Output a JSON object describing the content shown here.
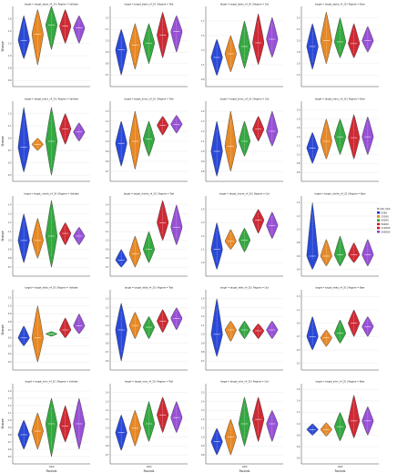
{
  "legend": {
    "title": "Model_Size",
    "entries": [
      {
        "label": "2560",
        "color": "#1f3fd6"
      },
      {
        "label": "15360",
        "color": "#e6831a"
      },
      {
        "label": "30000",
        "color": "#2aa437"
      },
      {
        "label": "50000",
        "color": "#cc1f2a"
      },
      {
        "label": "110000",
        "color": "#cc1f2a"
      },
      {
        "label": "200000",
        "color": "#9147d4"
      }
    ]
  },
  "chart_data": [
    {
      "type": "violin",
      "title": "target = target_alpha_v4_20 | Regime = Validate",
      "ylabel": "Sharpe",
      "xlabel": "",
      "ylim": [
        0.5,
        1.8
      ],
      "yticks": [
        0.6,
        0.8,
        1.0,
        1.2,
        1.4,
        1.6
      ],
      "x": [
        "1000"
      ],
      "series": [
        {
          "name": "2560",
          "median": 1.25,
          "min": 0.95,
          "max": 1.65
        },
        {
          "name": "15360",
          "median": 1.35,
          "min": 0.85,
          "max": 1.75
        },
        {
          "name": "30000",
          "median": 1.5,
          "min": 1.1,
          "max": 1.8
        },
        {
          "name": "50000",
          "median": 1.48,
          "min": 1.2,
          "max": 1.75
        },
        {
          "name": "110000",
          "median": 1.45,
          "min": 1.2,
          "max": 1.65
        }
      ]
    },
    {
      "type": "violin",
      "title": "target = target_alpha_v4_20 | Regime = Test",
      "ylabel": "",
      "xlabel": "",
      "ylim": [
        0.6,
        1.3
      ],
      "yticks": [
        0.7,
        0.8,
        0.9,
        1.0,
        1.1,
        1.2
      ],
      "x": [
        "1000"
      ],
      "series": [
        {
          "name": "2560",
          "median": 0.92,
          "min": 0.7,
          "max": 1.1
        },
        {
          "name": "15360",
          "median": 0.96,
          "min": 0.75,
          "max": 1.15
        },
        {
          "name": "30000",
          "median": 0.98,
          "min": 0.8,
          "max": 1.15
        },
        {
          "name": "50000",
          "median": 1.05,
          "min": 0.85,
          "max": 1.25
        },
        {
          "name": "110000",
          "median": 1.08,
          "min": 0.9,
          "max": 1.22
        }
      ]
    },
    {
      "type": "violin",
      "title": "target = target_alpha_v4_20 | Regime = Out",
      "ylabel": "",
      "xlabel": "",
      "ylim": [
        0.8,
        1.9
      ],
      "yticks": [
        0.9,
        1.1,
        1.3,
        1.5,
        1.7
      ],
      "x": [
        "1000"
      ],
      "series": [
        {
          "name": "2560",
          "median": 1.2,
          "min": 0.95,
          "max": 1.45
        },
        {
          "name": "15360",
          "median": 1.25,
          "min": 1.0,
          "max": 1.5
        },
        {
          "name": "30000",
          "median": 1.35,
          "min": 1.05,
          "max": 1.7
        },
        {
          "name": "50000",
          "median": 1.4,
          "min": 1.1,
          "max": 1.8
        },
        {
          "name": "110000",
          "median": 1.45,
          "min": 1.2,
          "max": 1.75
        }
      ]
    },
    {
      "type": "violin",
      "title": "target = target_alpha_v4_20 | Regime = Bear",
      "ylabel": "",
      "xlabel": "",
      "ylim": [
        1.2,
        2.6
      ],
      "yticks": [
        1.4,
        1.6,
        1.8,
        2.0,
        2.2,
        2.4
      ],
      "x": [
        "1000"
      ],
      "series": [
        {
          "name": "2560",
          "median": 1.9,
          "min": 1.5,
          "max": 2.3
        },
        {
          "name": "15360",
          "median": 2.0,
          "min": 1.6,
          "max": 2.5
        },
        {
          "name": "30000",
          "median": 1.98,
          "min": 1.7,
          "max": 2.4
        },
        {
          "name": "50000",
          "median": 1.95,
          "min": 1.7,
          "max": 2.3
        },
        {
          "name": "110000",
          "median": 2.0,
          "min": 1.8,
          "max": 2.25
        }
      ]
    },
    {
      "type": "violin",
      "title": "target = target_bravo_v4_20 | Regime = Validate",
      "ylabel": "Sharpe",
      "xlabel": "",
      "ylim": [
        0.2,
        1.5
      ],
      "yticks": [
        0.3,
        0.5,
        0.7,
        0.9,
        1.1,
        1.3
      ],
      "x": [
        "1000"
      ],
      "series": [
        {
          "name": "2560",
          "median": 0.75,
          "min": 0.35,
          "max": 1.4
        },
        {
          "name": "15360",
          "median": 0.8,
          "min": 0.7,
          "max": 0.9
        },
        {
          "name": "30000",
          "median": 0.85,
          "min": 0.3,
          "max": 1.4
        },
        {
          "name": "50000",
          "median": 1.05,
          "min": 0.8,
          "max": 1.3
        },
        {
          "name": "110000",
          "median": 1.0,
          "min": 0.85,
          "max": 1.15
        }
      ]
    },
    {
      "type": "violin",
      "title": "target = target_bravo_v4_20 | Regime = Test",
      "ylabel": "",
      "xlabel": "",
      "ylim": [
        0.6,
        1.4
      ],
      "yticks": [
        0.7,
        0.8,
        0.9,
        1.0,
        1.1,
        1.2,
        1.3
      ],
      "x": [
        "1000"
      ],
      "series": [
        {
          "name": "2560",
          "median": 0.98,
          "min": 0.75,
          "max": 1.2
        },
        {
          "name": "15360",
          "median": 1.0,
          "min": 0.72,
          "max": 1.3
        },
        {
          "name": "30000",
          "median": 1.02,
          "min": 0.85,
          "max": 1.2
        },
        {
          "name": "50000",
          "median": 1.16,
          "min": 1.06,
          "max": 1.25
        },
        {
          "name": "110000",
          "median": 1.17,
          "min": 1.08,
          "max": 1.26
        }
      ]
    },
    {
      "type": "violin",
      "title": "target = target_bravo_v4_20 | Regime = Out",
      "ylabel": "",
      "xlabel": "",
      "ylim": [
        0.7,
        1.5
      ],
      "yticks": [
        0.8,
        0.9,
        1.0,
        1.1,
        1.2,
        1.3,
        1.4
      ],
      "x": [
        "1000"
      ],
      "series": [
        {
          "name": "2560",
          "median": 1.0,
          "min": 0.75,
          "max": 1.3
        },
        {
          "name": "15360",
          "median": 1.05,
          "min": 0.8,
          "max": 1.4
        },
        {
          "name": "30000",
          "median": 1.1,
          "min": 0.95,
          "max": 1.3
        },
        {
          "name": "50000",
          "median": 1.22,
          "min": 1.1,
          "max": 1.35
        },
        {
          "name": "110000",
          "median": 1.2,
          "min": 1.05,
          "max": 1.4
        }
      ]
    },
    {
      "type": "violin",
      "title": "target = target_bravo_v4_20 | Regime = Bear",
      "ylabel": "",
      "xlabel": "",
      "ylim": [
        0.4,
        2.2
      ],
      "yticks": [
        0.6,
        0.8,
        1.0,
        1.2,
        1.4,
        1.6,
        1.8,
        2.0
      ],
      "x": [
        "1000"
      ],
      "series": [
        {
          "name": "2560",
          "median": 1.15,
          "min": 0.8,
          "max": 1.5
        },
        {
          "name": "15360",
          "median": 1.3,
          "min": 0.9,
          "max": 1.8
        },
        {
          "name": "30000",
          "median": 1.4,
          "min": 1.0,
          "max": 1.8
        },
        {
          "name": "50000",
          "median": 1.38,
          "min": 0.9,
          "max": 1.9
        },
        {
          "name": "110000",
          "median": 1.4,
          "min": 1.0,
          "max": 1.85
        }
      ]
    },
    {
      "type": "violin",
      "title": "target = target_charlie_v4_20 | Regime = Validate",
      "ylabel": "Sharpe",
      "xlabel": "",
      "ylim": [
        0.6,
        1.5
      ],
      "yticks": [
        0.7,
        0.8,
        0.9,
        1.0,
        1.1,
        1.2,
        1.3,
        1.4
      ],
      "x": [
        "1000"
      ],
      "series": [
        {
          "name": "2560",
          "median": 1.0,
          "min": 0.75,
          "max": 1.3
        },
        {
          "name": "15360",
          "median": 1.0,
          "min": 0.8,
          "max": 1.25
        },
        {
          "name": "30000",
          "median": 1.05,
          "min": 0.7,
          "max": 1.45
        },
        {
          "name": "50000",
          "median": 1.08,
          "min": 0.95,
          "max": 1.2
        },
        {
          "name": "110000",
          "median": 1.05,
          "min": 0.95,
          "max": 1.15
        }
      ]
    },
    {
      "type": "violin",
      "title": "target = target_charlie_v4_20 | Regime = Test",
      "ylabel": "",
      "xlabel": "",
      "ylim": [
        0.6,
        1.5
      ],
      "yticks": [
        0.7,
        0.8,
        0.9,
        1.0,
        1.1,
        1.2,
        1.3,
        1.4
      ],
      "x": [
        "1000"
      ],
      "series": [
        {
          "name": "2560",
          "median": 0.78,
          "min": 0.7,
          "max": 0.9
        },
        {
          "name": "15360",
          "median": 0.85,
          "min": 0.7,
          "max": 1.05
        },
        {
          "name": "30000",
          "median": 0.9,
          "min": 0.75,
          "max": 1.1
        },
        {
          "name": "50000",
          "median": 1.2,
          "min": 1.0,
          "max": 1.45
        },
        {
          "name": "110000",
          "median": 1.15,
          "min": 0.95,
          "max": 1.4
        }
      ]
    },
    {
      "type": "violin",
      "title": "target = target_charlie_v4_20 | Regime = Out",
      "ylabel": "",
      "xlabel": "",
      "ylim": [
        0.9,
        1.5
      ],
      "yticks": [
        1.0,
        1.1,
        1.2,
        1.3,
        1.4
      ],
      "x": [
        "1000"
      ],
      "series": [
        {
          "name": "2560",
          "median": 1.1,
          "min": 0.95,
          "max": 1.3
        },
        {
          "name": "15360",
          "median": 1.16,
          "min": 1.1,
          "max": 1.25
        },
        {
          "name": "30000",
          "median": 1.17,
          "min": 1.08,
          "max": 1.26
        },
        {
          "name": "50000",
          "median": 1.32,
          "min": 1.22,
          "max": 1.4
        },
        {
          "name": "110000",
          "median": 1.28,
          "min": 1.18,
          "max": 1.38
        }
      ]
    },
    {
      "type": "violin",
      "title": "target = target_charlie_v4_20 | Regime = Bear",
      "ylabel": "",
      "xlabel": "",
      "ylim": [
        0.3,
        1.5
      ],
      "yticks": [
        0.4,
        0.6,
        0.8,
        1.0,
        1.2,
        1.4
      ],
      "x": [
        "1000"
      ],
      "series": [
        {
          "name": "2560",
          "median": 0.6,
          "min": 0.4,
          "max": 1.4
        },
        {
          "name": "15360",
          "median": 0.6,
          "min": 0.45,
          "max": 0.85
        },
        {
          "name": "30000",
          "median": 0.62,
          "min": 0.45,
          "max": 0.9
        },
        {
          "name": "50000",
          "median": 0.62,
          "min": 0.5,
          "max": 0.8
        },
        {
          "name": "110000",
          "median": 0.62,
          "min": 0.45,
          "max": 0.85
        }
      ]
    },
    {
      "type": "violin",
      "title": "target = target_delta_v4_20 | Regime = Validate",
      "ylabel": "Sharpe",
      "xlabel": "",
      "ylim": [
        0.2,
        1.2
      ],
      "yticks": [
        0.3,
        0.4,
        0.5,
        0.6,
        0.7,
        0.8,
        0.9,
        1.0,
        1.1
      ],
      "x": [
        "1000"
      ],
      "series": [
        {
          "name": "2560",
          "median": 0.6,
          "min": 0.5,
          "max": 0.75
        },
        {
          "name": "15360",
          "median": 0.6,
          "min": 0.3,
          "max": 1.0
        },
        {
          "name": "30000",
          "median": 0.65,
          "min": 0.62,
          "max": 0.68
        },
        {
          "name": "50000",
          "median": 0.7,
          "min": 0.6,
          "max": 0.85
        },
        {
          "name": "110000",
          "median": 0.75,
          "min": 0.65,
          "max": 0.9
        }
      ]
    },
    {
      "type": "violin",
      "title": "target = target_delta_v4_20 | Regime = Test",
      "ylabel": "",
      "xlabel": "",
      "ylim": [
        0.5,
        1.4
      ],
      "yticks": [
        0.6,
        0.7,
        0.8,
        0.9,
        1.0,
        1.1,
        1.2,
        1.3
      ],
      "x": [
        "1000"
      ],
      "series": [
        {
          "name": "2560",
          "median": 0.95,
          "min": 0.6,
          "max": 1.25
        },
        {
          "name": "15360",
          "median": 1.0,
          "min": 0.85,
          "max": 1.15
        },
        {
          "name": "30000",
          "median": 0.98,
          "min": 0.85,
          "max": 1.1
        },
        {
          "name": "50000",
          "median": 1.05,
          "min": 0.92,
          "max": 1.18
        },
        {
          "name": "110000",
          "median": 1.08,
          "min": 0.95,
          "max": 1.2
        }
      ]
    },
    {
      "type": "violin",
      "title": "target = target_delta_v4_20 | Regime = Out",
      "ylabel": "",
      "xlabel": "",
      "ylim": [
        0.6,
        1.5
      ],
      "yticks": [
        0.7,
        0.8,
        0.9,
        1.0,
        1.1,
        1.2,
        1.3,
        1.4
      ],
      "x": [
        "1000"
      ],
      "series": [
        {
          "name": "2560",
          "median": 1.0,
          "min": 0.75,
          "max": 1.4
        },
        {
          "name": "15360",
          "median": 1.05,
          "min": 0.92,
          "max": 1.15
        },
        {
          "name": "30000",
          "median": 1.05,
          "min": 0.95,
          "max": 1.15
        },
        {
          "name": "50000",
          "median": 1.04,
          "min": 0.95,
          "max": 1.12
        },
        {
          "name": "110000",
          "median": 1.05,
          "min": 0.95,
          "max": 1.15
        }
      ]
    },
    {
      "type": "violin",
      "title": "target = target_delta_v4_20 | Regime = Bear",
      "ylabel": "",
      "xlabel": "",
      "ylim": [
        0.2,
        1.4
      ],
      "yticks": [
        0.3,
        0.5,
        0.7,
        0.9,
        1.1,
        1.3
      ],
      "x": [
        "1000"
      ],
      "series": [
        {
          "name": "2560",
          "median": 0.7,
          "min": 0.5,
          "max": 1.0
        },
        {
          "name": "15360",
          "median": 0.68,
          "min": 0.55,
          "max": 0.8
        },
        {
          "name": "30000",
          "median": 0.75,
          "min": 0.6,
          "max": 0.95
        },
        {
          "name": "50000",
          "median": 0.9,
          "min": 0.7,
          "max": 1.1
        },
        {
          "name": "110000",
          "median": 0.85,
          "min": 0.7,
          "max": 1.0
        }
      ]
    },
    {
      "type": "violin",
      "title": "target = target_echo_v4_20 | Regime = Validate",
      "ylabel": "Sharpe",
      "xlabel": "Rounds",
      "ylim": [
        0.4,
        1.5
      ],
      "yticks": [
        0.5,
        0.6,
        0.7,
        0.8,
        0.9,
        1.0,
        1.1,
        1.2,
        1.3,
        1.4
      ],
      "x": [
        "1000"
      ],
      "series": [
        {
          "name": "2560",
          "median": 0.8,
          "min": 0.6,
          "max": 1.0
        },
        {
          "name": "15360",
          "median": 0.85,
          "min": 0.6,
          "max": 1.1
        },
        {
          "name": "30000",
          "median": 0.95,
          "min": 0.5,
          "max": 1.3
        },
        {
          "name": "50000",
          "median": 0.92,
          "min": 0.7,
          "max": 1.2
        },
        {
          "name": "110000",
          "median": 0.95,
          "min": 0.6,
          "max": 1.3
        }
      ]
    },
    {
      "type": "violin",
      "title": "target = target_echo_v4_20 | Regime = Test",
      "ylabel": "",
      "xlabel": "Rounds",
      "ylim": [
        0.6,
        1.5
      ],
      "yticks": [
        0.7,
        0.8,
        0.9,
        1.0,
        1.1,
        1.2,
        1.3,
        1.4
      ],
      "x": [
        "1000"
      ],
      "series": [
        {
          "name": "2560",
          "median": 0.95,
          "min": 0.75,
          "max": 1.15
        },
        {
          "name": "15360",
          "median": 1.0,
          "min": 0.8,
          "max": 1.2
        },
        {
          "name": "30000",
          "median": 1.05,
          "min": 0.85,
          "max": 1.3
        },
        {
          "name": "50000",
          "median": 1.15,
          "min": 0.95,
          "max": 1.35
        },
        {
          "name": "110000",
          "median": 1.12,
          "min": 0.95,
          "max": 1.3
        }
      ]
    },
    {
      "type": "violin",
      "title": "target = target_echo_v4_20 | Regime = Out",
      "ylabel": "",
      "xlabel": "Rounds",
      "ylim": [
        0.7,
        1.6
      ],
      "yticks": [
        0.8,
        0.9,
        1.0,
        1.1,
        1.2,
        1.3,
        1.4,
        1.5
      ],
      "x": [
        "1000"
      ],
      "series": [
        {
          "name": "2560",
          "median": 0.95,
          "min": 0.8,
          "max": 1.1
        },
        {
          "name": "15360",
          "median": 1.0,
          "min": 0.8,
          "max": 1.2
        },
        {
          "name": "30000",
          "median": 1.15,
          "min": 0.9,
          "max": 1.45
        },
        {
          "name": "50000",
          "median": 1.2,
          "min": 0.95,
          "max": 1.45
        },
        {
          "name": "110000",
          "median": 1.15,
          "min": 0.95,
          "max": 1.3
        }
      ]
    },
    {
      "type": "violin",
      "title": "target = target_echo_v4_20 | Regime = Bear",
      "ylabel": "",
      "xlabel": "Rounds",
      "ylim": [
        0.3,
        1.7
      ],
      "yticks": [
        0.4,
        0.6,
        0.8,
        1.0,
        1.2,
        1.4,
        1.6
      ],
      "x": [
        "1000"
      ],
      "series": [
        {
          "name": "2560",
          "median": 0.9,
          "min": 0.8,
          "max": 1.0
        },
        {
          "name": "15360",
          "median": 0.9,
          "min": 0.78,
          "max": 1.02
        },
        {
          "name": "30000",
          "median": 0.95,
          "min": 0.7,
          "max": 1.2
        },
        {
          "name": "50000",
          "median": 1.05,
          "min": 0.75,
          "max": 1.5
        },
        {
          "name": "110000",
          "median": 1.05,
          "min": 0.8,
          "max": 1.3
        }
      ]
    }
  ]
}
